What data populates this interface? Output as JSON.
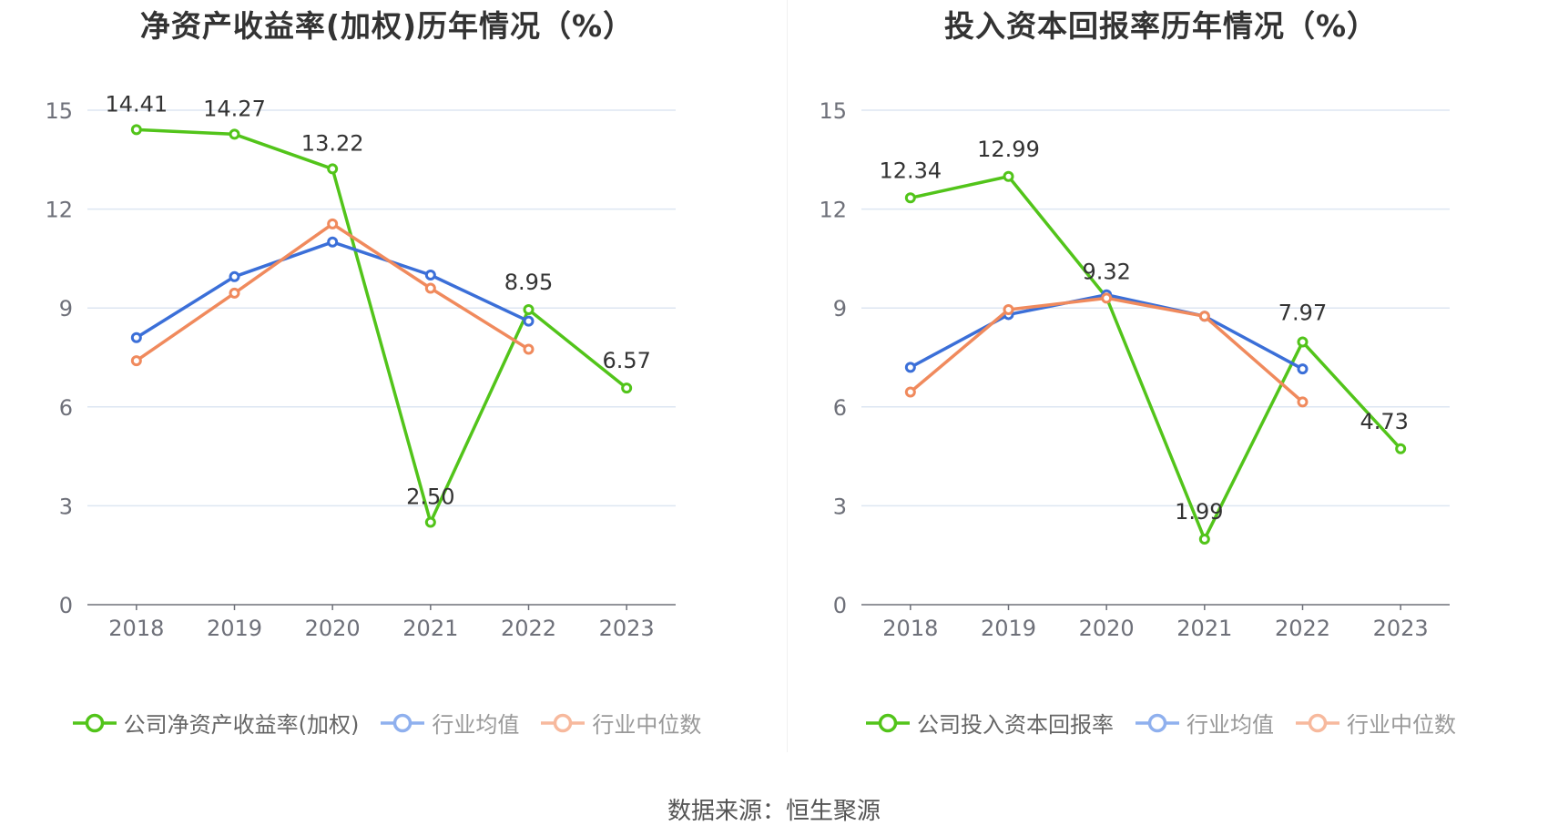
{
  "source": "数据来源：恒生聚源",
  "chart_data": [
    {
      "type": "line",
      "title": "净资产收益率(加权)历年情况（%）",
      "categories": [
        "2018",
        "2019",
        "2020",
        "2021",
        "2022",
        "2023"
      ],
      "y_ticks": [
        "0",
        "3",
        "6",
        "9",
        "12",
        "15"
      ],
      "ylim": [
        0,
        15
      ],
      "grid": true,
      "legend_position": "bottom",
      "series": [
        {
          "name": "公司净资产收益率(加权)",
          "color": "#52c41a",
          "values": [
            14.41,
            14.27,
            13.22,
            2.5,
            8.95,
            6.57
          ],
          "labels": [
            "14.41",
            "14.27",
            "13.22",
            "2.50",
            "8.95",
            "6.57"
          ]
        },
        {
          "name": "行业均值",
          "color": "#3b6fd8",
          "values": [
            8.1,
            9.95,
            11.0,
            10.0,
            8.6,
            null
          ]
        },
        {
          "name": "行业中位数",
          "color": "#f08a5d",
          "values": [
            7.4,
            9.45,
            11.55,
            9.6,
            7.75,
            null
          ]
        }
      ]
    },
    {
      "type": "line",
      "title": "投入资本回报率历年情况（%）",
      "categories": [
        "2018",
        "2019",
        "2020",
        "2021",
        "2022",
        "2023"
      ],
      "y_ticks": [
        "0",
        "3",
        "6",
        "9",
        "12",
        "15"
      ],
      "ylim": [
        0,
        15
      ],
      "grid": true,
      "legend_position": "bottom",
      "series": [
        {
          "name": "公司投入资本回报率",
          "color": "#52c41a",
          "values": [
            12.34,
            12.99,
            9.32,
            1.99,
            7.97,
            4.73
          ],
          "labels": [
            "12.34",
            "12.99",
            "9.32",
            "1.99",
            "7.97",
            "4.73"
          ]
        },
        {
          "name": "行业均值",
          "color": "#3b6fd8",
          "values": [
            7.2,
            8.8,
            9.4,
            8.75,
            7.15,
            null
          ]
        },
        {
          "name": "行业中位数",
          "color": "#f08a5d",
          "values": [
            6.45,
            8.95,
            9.3,
            8.75,
            6.15,
            null
          ]
        }
      ]
    }
  ]
}
